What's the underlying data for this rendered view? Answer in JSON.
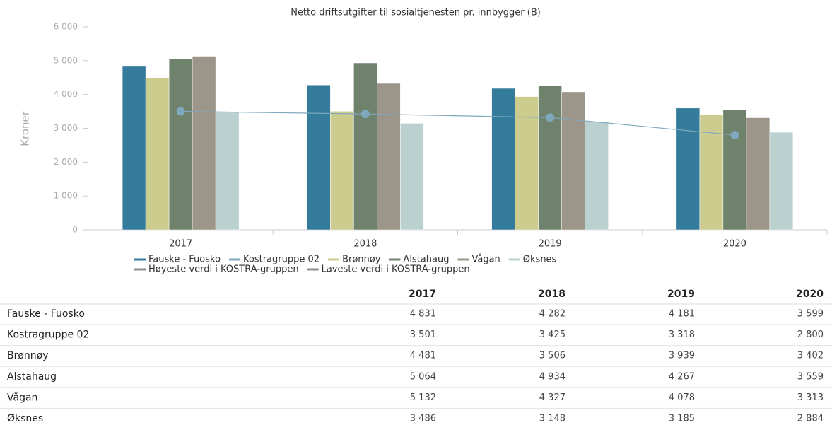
{
  "chart_data": {
    "type": "bar",
    "title": "Netto driftsutgifter til sosialtjenesten pr. innbygger (B)",
    "y_label": "Kroner",
    "categories": [
      "2017",
      "2018",
      "2019",
      "2020"
    ],
    "ylim": [
      0,
      6000
    ],
    "yticks": [
      0,
      {
        "value": 1000,
        "label": "1 000"
      },
      {
        "value": 2000,
        "label": "2 000"
      },
      {
        "value": 3000,
        "label": "3 000"
      },
      {
        "value": 4000,
        "label": "4 000"
      },
      {
        "value": 5000,
        "label": "5 000"
      },
      {
        "value": 6000,
        "label": "6 000"
      }
    ],
    "series": [
      {
        "name": "Fauske - Fuosko",
        "type": "bar",
        "color": "#357b9b",
        "values": [
          4831,
          4282,
          4181,
          3599
        ],
        "value_labels": [
          "4 831",
          "4 282",
          "4 181",
          "3 599"
        ]
      },
      {
        "name": "Kostragruppe 02",
        "type": "line",
        "color": "#7fa8bf",
        "values": [
          3501,
          3425,
          3318,
          2800
        ],
        "value_labels": [
          "3 501",
          "3 425",
          "3 318",
          "2 800"
        ]
      },
      {
        "name": "Brønnøy",
        "type": "bar",
        "color": "#cdcc8f",
        "values": [
          4481,
          3506,
          3939,
          3402
        ],
        "value_labels": [
          "4 481",
          "3 506",
          "3 939",
          "3 402"
        ]
      },
      {
        "name": "Alstahaug",
        "type": "bar",
        "color": "#6e826c",
        "values": [
          5064,
          4934,
          4267,
          3559
        ],
        "value_labels": [
          "5 064",
          "4 934",
          "4 267",
          "3 559"
        ]
      },
      {
        "name": "Vågan",
        "type": "bar",
        "color": "#9c9589",
        "values": [
          5132,
          4327,
          4078,
          3313
        ],
        "value_labels": [
          "5 132",
          "4 327",
          "4 078",
          "3 313"
        ]
      },
      {
        "name": "Øksnes",
        "type": "bar",
        "color": "#bad1d0",
        "values": [
          3486,
          3148,
          3185,
          2884
        ],
        "value_labels": [
          "3 486",
          "3 148",
          "3 185",
          "2 884"
        ]
      }
    ],
    "legend_extra": [
      {
        "name": "Høyeste verdi i KOSTRA-gruppen",
        "color": "#8f8f8f"
      },
      {
        "name": "Laveste verdi i KOSTRA-gruppen",
        "color": "#8f8f8f"
      }
    ]
  }
}
